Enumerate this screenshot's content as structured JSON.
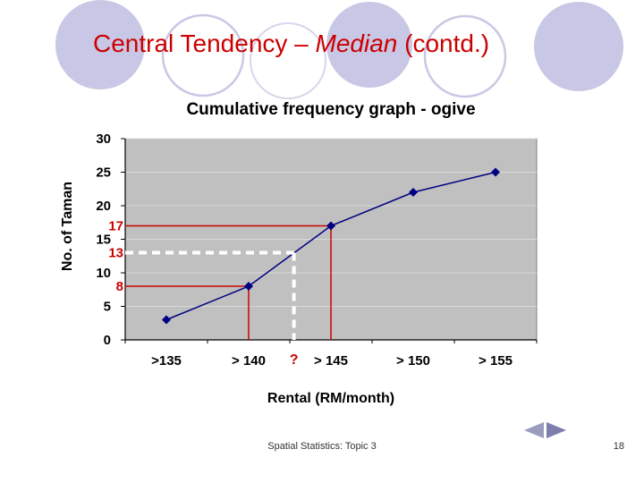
{
  "slide": {
    "title": {
      "prefix": "Central Tendency – ",
      "emphasis": "Median",
      "suffix": " (contd.)",
      "color": "#cc0000"
    },
    "footer": {
      "text": "Spatial Statistics: Topic 3",
      "page_number": "18"
    }
  },
  "chart_data": {
    "type": "line",
    "title": "Cumulative frequency graph - ogive",
    "xlabel": "Rental (RM/month)",
    "ylabel": "No. of Taman",
    "categories": [
      ">135",
      "> 140",
      "> 145",
      "> 150",
      "> 155"
    ],
    "series": [
      {
        "values": [
          3,
          8,
          17,
          22,
          25
        ]
      }
    ],
    "ylim": [
      0,
      30
    ],
    "ytick_step": 5,
    "grid": true,
    "legend": false,
    "marker": "diamond",
    "colors": {
      "plot_bg": "#c0c0c0",
      "plot_border": "#808080",
      "grid": "#d9d9d9",
      "axis": "#000000",
      "line": "#000080",
      "annotation": "#cc0000",
      "dashed": "#ffffff"
    },
    "annotations": {
      "value_labels": [
        {
          "text": "17",
          "value": 17
        },
        {
          "text": "13",
          "value": 13
        },
        {
          "text": "8",
          "value": 8
        }
      ],
      "drop_lines": [
        {
          "value": 17,
          "category_index": 2
        },
        {
          "value": 8,
          "category_index": 1
        }
      ],
      "median_dashed_line": {
        "value": 13,
        "category_position": 1.55,
        "color": "#ffffff"
      },
      "question_label": "?"
    }
  }
}
